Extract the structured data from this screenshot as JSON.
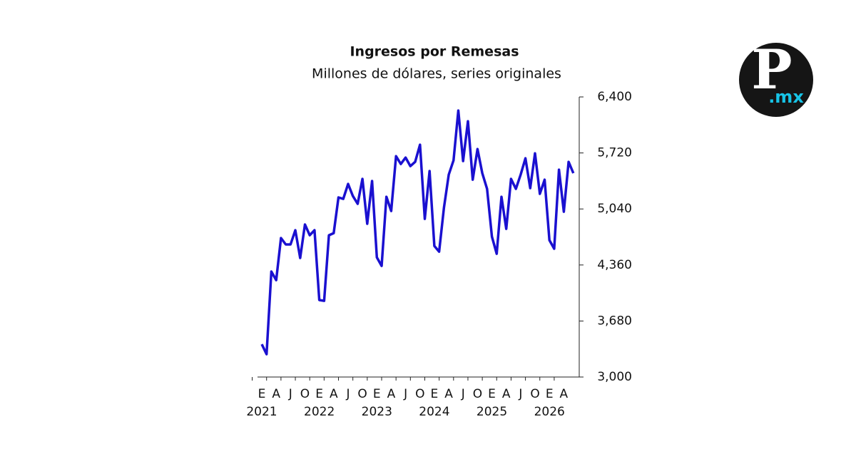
{
  "chart_data": {
    "type": "line",
    "title": "Ingresos por Remesas",
    "subtitle": "Millones de dólares, series originales",
    "categories": [
      "E",
      null,
      null,
      "A",
      null,
      null,
      "J",
      null,
      null,
      "O",
      null,
      null,
      "E",
      null,
      null,
      "A",
      null,
      null,
      "J",
      null,
      null,
      "O",
      null,
      null,
      "E",
      null,
      null,
      "A",
      null,
      null,
      "J",
      null,
      null,
      "O",
      null,
      null,
      "E",
      null,
      null,
      "A",
      null,
      null,
      "J",
      null,
      null,
      "O",
      null,
      null,
      "E",
      null,
      null,
      "A",
      null,
      null,
      "J",
      null,
      null,
      "O",
      null,
      null,
      "E",
      null,
      null,
      "A",
      null,
      null
    ],
    "x_year_labels": [
      "2021",
      "2022",
      "2023",
      "2024",
      "2025",
      "2026"
    ],
    "series": [
      {
        "color": "#1a10d0",
        "values": [
          3398,
          3277,
          4280,
          4176,
          4687,
          4609,
          4609,
          4782,
          4445,
          4851,
          4721,
          4782,
          3934,
          3925,
          4721,
          4747,
          5180,
          5162,
          5344,
          5197,
          5102,
          5405,
          4860,
          5379,
          4453,
          4349,
          5188,
          5015,
          5681,
          5586,
          5664,
          5560,
          5612,
          5820,
          4920,
          5500,
          4591,
          4522,
          5058,
          5457,
          5630,
          6235,
          5621,
          6105,
          5396,
          5768,
          5474,
          5284,
          4704,
          4496,
          5188,
          4799,
          5405,
          5284,
          5457,
          5655,
          5293,
          5716,
          5223,
          5396,
          4661,
          4557,
          5517,
          5006,
          5612,
          5474
        ]
      }
    ],
    "ylim": [
      3000,
      6400
    ],
    "yticks": [
      {
        "value": 3000,
        "label": "3,000"
      },
      {
        "value": 3680,
        "label": "3,680"
      },
      {
        "value": 4360,
        "label": "4,360"
      },
      {
        "value": 5040,
        "label": "5,040"
      },
      {
        "value": 5720,
        "label": "5,720"
      },
      {
        "value": 6400,
        "label": "6,400"
      }
    ],
    "y_axis_side": "right",
    "grid": false
  },
  "logo": {
    "letter": "P",
    "suffix": ".mx"
  }
}
